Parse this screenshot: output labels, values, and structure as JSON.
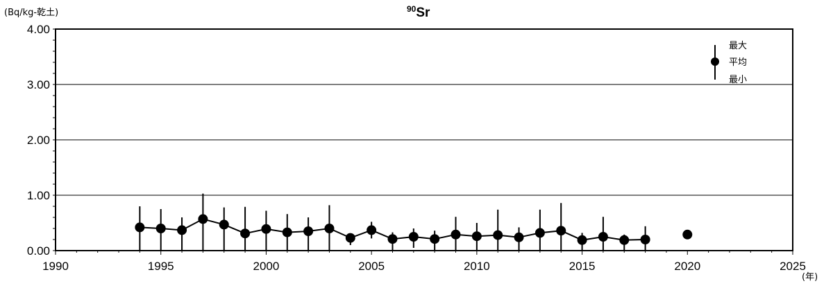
{
  "chart_data": {
    "type": "scatter",
    "title_superscript": "90",
    "title_main": "Sr",
    "ylabel": "(Bq/kg-乾土)",
    "xlabel": "(年)",
    "xlim": [
      1990,
      2025
    ],
    "ylim": [
      0,
      4
    ],
    "x_ticks": [
      1990,
      1995,
      2000,
      2005,
      2010,
      2015,
      2020,
      2025
    ],
    "y_ticks": [
      0,
      1,
      2,
      3,
      4
    ],
    "y_tick_labels": [
      "0.00",
      "1.00",
      "2.00",
      "3.00",
      "4.00"
    ],
    "grid": "horizontal",
    "legend": {
      "position": "top-right",
      "max_label": "最大",
      "mean_label": "平均",
      "min_label": "最小"
    },
    "series": [
      {
        "points": [
          {
            "x": 1994,
            "mean": 0.42,
            "max": 0.8,
            "min": 0.0
          },
          {
            "x": 1995,
            "mean": 0.4,
            "max": 0.75,
            "min": 0.0
          },
          {
            "x": 1996,
            "mean": 0.37,
            "max": 0.6,
            "min": 0.0
          },
          {
            "x": 1997,
            "mean": 0.57,
            "max": 1.03,
            "min": 0.0
          },
          {
            "x": 1998,
            "mean": 0.47,
            "max": 0.78,
            "min": 0.0
          },
          {
            "x": 1999,
            "mean": 0.31,
            "max": 0.79,
            "min": 0.0
          },
          {
            "x": 2000,
            "mean": 0.39,
            "max": 0.72,
            "min": 0.0
          },
          {
            "x": 2001,
            "mean": 0.33,
            "max": 0.66,
            "min": 0.0
          },
          {
            "x": 2002,
            "mean": 0.35,
            "max": 0.6,
            "min": 0.0
          },
          {
            "x": 2003,
            "mean": 0.4,
            "max": 0.82,
            "min": 0.0
          },
          {
            "x": 2004,
            "mean": 0.23,
            "max": 0.25,
            "min": 0.1
          },
          {
            "x": 2005,
            "mean": 0.37,
            "max": 0.52,
            "min": 0.22
          },
          {
            "x": 2006,
            "mean": 0.21,
            "max": 0.33,
            "min": 0.0
          },
          {
            "x": 2007,
            "mean": 0.25,
            "max": 0.4,
            "min": 0.05
          },
          {
            "x": 2008,
            "mean": 0.21,
            "max": 0.36,
            "min": 0.0
          },
          {
            "x": 2009,
            "mean": 0.29,
            "max": 0.61,
            "min": 0.0
          },
          {
            "x": 2010,
            "mean": 0.26,
            "max": 0.5,
            "min": 0.0
          },
          {
            "x": 2011,
            "mean": 0.28,
            "max": 0.74,
            "min": 0.0
          },
          {
            "x": 2012,
            "mean": 0.24,
            "max": 0.42,
            "min": 0.0
          },
          {
            "x": 2013,
            "mean": 0.32,
            "max": 0.74,
            "min": 0.0
          },
          {
            "x": 2014,
            "mean": 0.36,
            "max": 0.86,
            "min": 0.0
          },
          {
            "x": 2015,
            "mean": 0.19,
            "max": 0.32,
            "min": 0.0
          },
          {
            "x": 2016,
            "mean": 0.25,
            "max": 0.61,
            "min": 0.0
          },
          {
            "x": 2017,
            "mean": 0.19,
            "max": 0.29,
            "min": 0.0
          },
          {
            "x": 2018,
            "mean": 0.2,
            "max": 0.44,
            "min": 0.0
          }
        ]
      },
      {
        "points": [
          {
            "x": 2020,
            "mean": 0.29,
            "max": 0.29,
            "min": 0.29
          }
        ]
      }
    ]
  }
}
